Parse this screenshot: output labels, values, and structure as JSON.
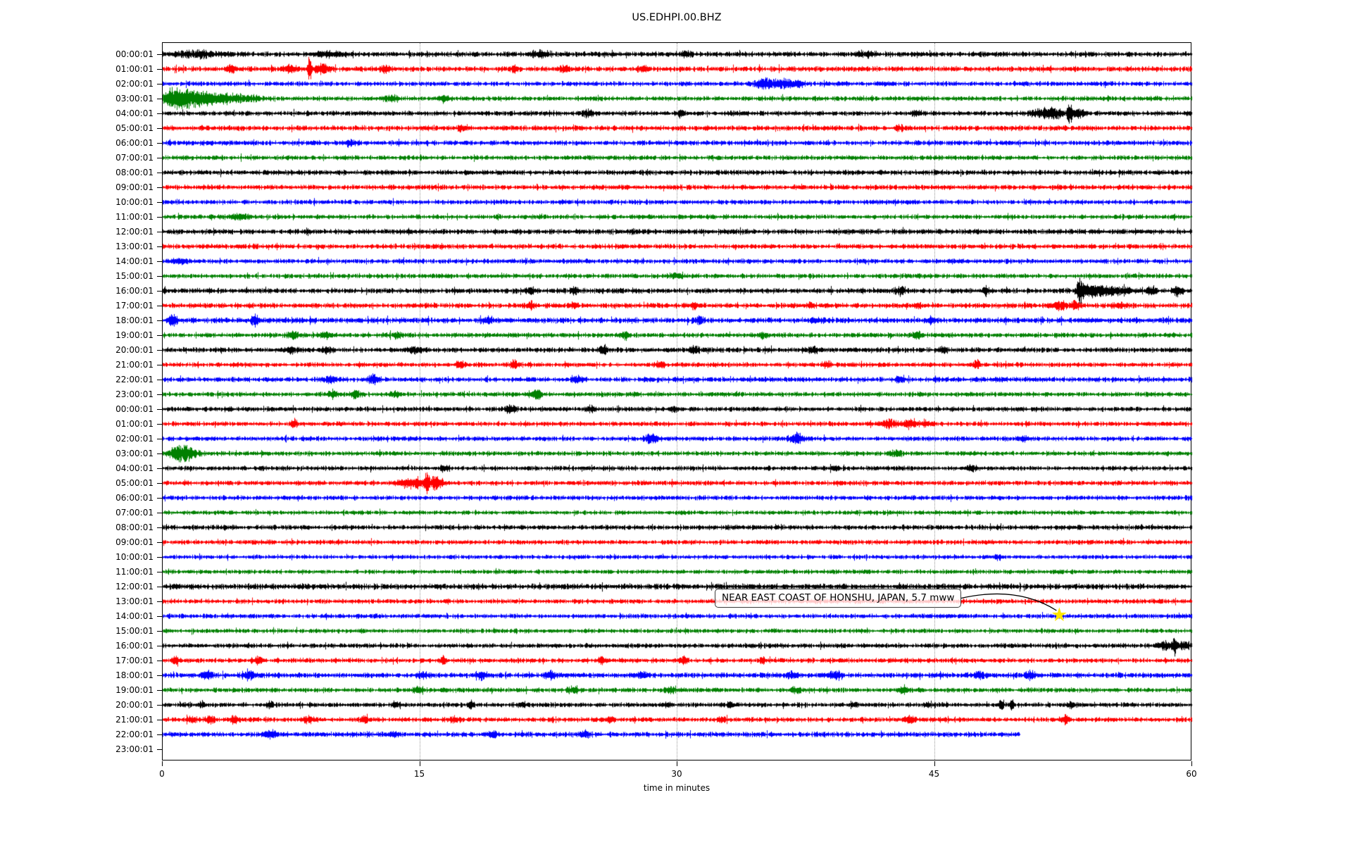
{
  "window": {
    "background": "#ffffff"
  },
  "chart_data": {
    "type": "line",
    "subtype": "helicorder-dayplot",
    "title": "US.EDHPI.00.BHZ",
    "xlabel": "time in minutes",
    "x_range": [
      0,
      60
    ],
    "x_ticks": [
      0,
      15,
      30,
      45,
      60
    ],
    "grid_minutes": [
      15,
      30,
      45
    ],
    "grid_style": "dotted",
    "color_cycle": [
      "#000000",
      "#ff0000",
      "#0000ff",
      "#008000"
    ],
    "event_marker": {
      "text": "NEAR EAST COAST OF HONSHU, JAPAN, 5.7 mww",
      "row_index": 38,
      "row_label": "14:00:01",
      "minute": 52.3,
      "marker": "star",
      "marker_color": "#ffe600"
    },
    "rows": [
      {
        "label": "00:00:01",
        "color": "#000000",
        "noise": 3.0,
        "end": 60,
        "events": [
          [
            2,
            4.5,
            1.2
          ],
          [
            9.8,
            4,
            0.8
          ],
          [
            22,
            4,
            0.6
          ],
          [
            30.5,
            4.5,
            0.3
          ],
          [
            41,
            3.5,
            0.5
          ]
        ]
      },
      {
        "label": "01:00:01",
        "color": "#ff0000",
        "noise": 3.0,
        "end": 60,
        "events": [
          [
            4,
            5,
            0.3
          ],
          [
            7.5,
            6,
            0.4
          ],
          [
            8.6,
            18,
            0.12
          ],
          [
            9.3,
            7,
            0.4
          ],
          [
            13,
            5,
            0.3
          ],
          [
            20.5,
            6,
            0.25
          ],
          [
            23.5,
            4,
            0.3
          ],
          [
            28,
            4,
            0.3
          ]
        ]
      },
      {
        "label": "02:00:01",
        "color": "#0000ff",
        "noise": 2.7,
        "end": 60,
        "events": [
          [
            35.2,
            8,
            0.6
          ],
          [
            36.3,
            7,
            0.5
          ],
          [
            37.1,
            5,
            0.3
          ]
        ]
      },
      {
        "label": "03:00:01",
        "color": "#008000",
        "noise": 2.7,
        "end": 60,
        "events": [
          [
            0.5,
            10,
            0.5
          ],
          [
            1.2,
            12,
            0.7
          ],
          [
            2.2,
            8,
            0.8
          ],
          [
            3.3,
            6,
            1
          ],
          [
            4.8,
            4,
            1
          ],
          [
            13.3,
            5,
            0.4
          ],
          [
            16.5,
            4,
            0.3
          ]
        ]
      },
      {
        "label": "04:00:01",
        "color": "#000000",
        "noise": 2.8,
        "end": 60,
        "events": [
          [
            24.8,
            5,
            0.3
          ],
          [
            30.2,
            6,
            0.2
          ],
          [
            44,
            4,
            0.3
          ],
          [
            51.3,
            6,
            0.7
          ],
          [
            52.1,
            6,
            0.4
          ],
          [
            52.9,
            16,
            0.13
          ],
          [
            53.4,
            7,
            0.4
          ]
        ]
      },
      {
        "label": "05:00:01",
        "color": "#ff0000",
        "noise": 3.0,
        "end": 60,
        "events": [
          [
            17.5,
            4,
            0.3
          ],
          [
            43,
            4,
            0.3
          ]
        ]
      },
      {
        "label": "06:00:01",
        "color": "#0000ff",
        "noise": 2.8,
        "end": 60,
        "events": [
          [
            11,
            4,
            0.4
          ]
        ]
      },
      {
        "label": "07:00:01",
        "color": "#008000",
        "noise": 2.7,
        "end": 60,
        "events": []
      },
      {
        "label": "08:00:01",
        "color": "#000000",
        "noise": 3.0,
        "end": 60,
        "events": []
      },
      {
        "label": "09:00:01",
        "color": "#ff0000",
        "noise": 2.9,
        "end": 60,
        "events": []
      },
      {
        "label": "10:00:01",
        "color": "#0000ff",
        "noise": 2.7,
        "end": 60,
        "events": []
      },
      {
        "label": "11:00:01",
        "color": "#008000",
        "noise": 2.7,
        "end": 60,
        "events": [
          [
            4.5,
            4,
            0.5
          ]
        ]
      },
      {
        "label": "12:00:01",
        "color": "#000000",
        "noise": 3.0,
        "end": 60,
        "events": []
      },
      {
        "label": "13:00:01",
        "color": "#ff0000",
        "noise": 2.9,
        "end": 60,
        "events": []
      },
      {
        "label": "14:00:01",
        "color": "#0000ff",
        "noise": 2.7,
        "end": 60,
        "events": [
          [
            1,
            4,
            0.5
          ]
        ]
      },
      {
        "label": "15:00:01",
        "color": "#008000",
        "noise": 2.7,
        "end": 60,
        "events": [
          [
            30,
            4,
            0.4
          ]
        ]
      },
      {
        "label": "16:00:01",
        "color": "#000000",
        "noise": 3.0,
        "end": 60,
        "events": [
          [
            21.5,
            6,
            0.2
          ],
          [
            24,
            5,
            0.2
          ],
          [
            43,
            5,
            0.3
          ],
          [
            48,
            5,
            0.2
          ],
          [
            53.5,
            17,
            0.2
          ],
          [
            54.3,
            8,
            0.7
          ],
          [
            55.6,
            5,
            0.9
          ],
          [
            57.7,
            7,
            0.25
          ],
          [
            59.2,
            6,
            0.3
          ]
        ]
      },
      {
        "label": "17:00:01",
        "color": "#ff0000",
        "noise": 3.0,
        "end": 60,
        "events": [
          [
            21.5,
            5,
            0.2
          ],
          [
            24,
            4,
            0.2
          ],
          [
            31,
            4,
            0.2
          ],
          [
            37.8,
            4,
            0.2
          ],
          [
            44,
            4,
            0.2
          ],
          [
            52.3,
            6,
            0.4
          ],
          [
            53.2,
            6,
            0.3
          ],
          [
            55.8,
            4,
            0.3
          ]
        ]
      },
      {
        "label": "18:00:01",
        "color": "#0000ff",
        "noise": 3.2,
        "end": 60,
        "events": [
          [
            0.6,
            7,
            0.3
          ],
          [
            5.4,
            9,
            0.2
          ],
          [
            19,
            4,
            0.3
          ],
          [
            31.3,
            6,
            0.3
          ],
          [
            38.2,
            4,
            0.3
          ],
          [
            44.8,
            4,
            0.3
          ]
        ]
      },
      {
        "label": "19:00:01",
        "color": "#008000",
        "noise": 2.8,
        "end": 60,
        "events": [
          [
            7.6,
            5,
            0.3
          ],
          [
            9.5,
            5,
            0.3
          ],
          [
            13.7,
            4,
            0.3
          ],
          [
            27,
            4,
            0.3
          ],
          [
            35,
            4,
            0.3
          ],
          [
            44,
            4,
            0.3
          ]
        ]
      },
      {
        "label": "20:00:01",
        "color": "#000000",
        "noise": 2.9,
        "end": 60,
        "events": [
          [
            7.5,
            4,
            0.3
          ],
          [
            9.5,
            4,
            0.3
          ],
          [
            14.8,
            5,
            0.3
          ],
          [
            25.7,
            6,
            0.25
          ],
          [
            31,
            5,
            0.3
          ],
          [
            38,
            4,
            0.3
          ],
          [
            45.5,
            4,
            0.3
          ]
        ]
      },
      {
        "label": "21:00:01",
        "color": "#ff0000",
        "noise": 2.7,
        "end": 60,
        "events": [
          [
            17.4,
            5,
            0.25
          ],
          [
            20.5,
            6,
            0.2
          ],
          [
            29,
            5,
            0.25
          ],
          [
            38.7,
            4,
            0.25
          ],
          [
            47.5,
            6,
            0.2
          ]
        ]
      },
      {
        "label": "22:00:01",
        "color": "#0000ff",
        "noise": 2.9,
        "end": 60,
        "events": [
          [
            9.8,
            5,
            0.3
          ],
          [
            12.3,
            6,
            0.3
          ],
          [
            24.2,
            5,
            0.3
          ],
          [
            43,
            4,
            0.3
          ]
        ]
      },
      {
        "label": "23:00:01",
        "color": "#008000",
        "noise": 2.7,
        "end": 60,
        "events": [
          [
            9.9,
            5,
            0.3
          ],
          [
            11.3,
            6,
            0.3
          ],
          [
            13.5,
            4,
            0.3
          ],
          [
            21.8,
            7,
            0.3
          ]
        ]
      },
      {
        "label": "00:00:01",
        "color": "#000000",
        "noise": 2.7,
        "end": 60,
        "events": [
          [
            20.3,
            6,
            0.3
          ],
          [
            25,
            4,
            0.3
          ],
          [
            29.8,
            4,
            0.3
          ]
        ]
      },
      {
        "label": "01:00:01",
        "color": "#ff0000",
        "noise": 2.7,
        "end": 60,
        "events": [
          [
            7.7,
            5,
            0.2
          ],
          [
            42.3,
            7,
            0.4
          ],
          [
            43.5,
            6,
            0.4
          ],
          [
            44.6,
            4,
            0.3
          ]
        ]
      },
      {
        "label": "02:00:01",
        "color": "#0000ff",
        "noise": 2.7,
        "end": 60,
        "events": [
          [
            28.5,
            7,
            0.4
          ],
          [
            37,
            7,
            0.4
          ],
          [
            50.2,
            4,
            0.3
          ]
        ]
      },
      {
        "label": "03:00:01",
        "color": "#008000",
        "noise": 2.7,
        "end": 60,
        "events": [
          [
            0.9,
            10,
            0.5
          ],
          [
            1.6,
            7,
            0.5
          ],
          [
            42.8,
            4,
            0.3
          ]
        ]
      },
      {
        "label": "04:00:01",
        "color": "#000000",
        "noise": 2.7,
        "end": 60,
        "events": [
          [
            16.4,
            4,
            0.2
          ],
          [
            39.2,
            4,
            0.2
          ],
          [
            47.2,
            5,
            0.2
          ]
        ]
      },
      {
        "label": "05:00:01",
        "color": "#ff0000",
        "noise": 2.7,
        "end": 60,
        "events": [
          [
            14.2,
            6,
            0.5
          ],
          [
            14.9,
            7,
            0.3
          ],
          [
            15.4,
            22,
            0.12
          ],
          [
            15.8,
            8,
            0.3
          ],
          [
            16.2,
            5,
            0.3
          ]
        ]
      },
      {
        "label": "06:00:01",
        "color": "#0000ff",
        "noise": 2.7,
        "end": 60,
        "events": []
      },
      {
        "label": "07:00:01",
        "color": "#008000",
        "noise": 2.5,
        "end": 60,
        "events": []
      },
      {
        "label": "08:00:01",
        "color": "#000000",
        "noise": 2.8,
        "end": 60,
        "events": []
      },
      {
        "label": "09:00:01",
        "color": "#ff0000",
        "noise": 2.7,
        "end": 60,
        "events": []
      },
      {
        "label": "10:00:01",
        "color": "#0000ff",
        "noise": 2.5,
        "end": 60,
        "events": [
          [
            48.7,
            4,
            0.2
          ]
        ]
      },
      {
        "label": "11:00:01",
        "color": "#008000",
        "noise": 2.5,
        "end": 60,
        "events": []
      },
      {
        "label": "12:00:01",
        "color": "#000000",
        "noise": 3.3,
        "end": 60,
        "events": []
      },
      {
        "label": "13:00:01",
        "color": "#ff0000",
        "noise": 2.7,
        "end": 60,
        "events": []
      },
      {
        "label": "14:00:01",
        "color": "#0000ff",
        "noise": 2.7,
        "end": 60,
        "events": []
      },
      {
        "label": "15:00:01",
        "color": "#008000",
        "noise": 2.5,
        "end": 60,
        "events": []
      },
      {
        "label": "16:00:01",
        "color": "#000000",
        "noise": 2.7,
        "end": 60,
        "events": [
          [
            58.4,
            7,
            0.4
          ],
          [
            59,
            14,
            0.13
          ],
          [
            59.5,
            6,
            0.3
          ]
        ]
      },
      {
        "label": "17:00:01",
        "color": "#ff0000",
        "noise": 2.7,
        "end": 60,
        "events": [
          [
            0.8,
            7,
            0.2
          ],
          [
            5.6,
            6,
            0.2
          ],
          [
            16.4,
            6,
            0.2
          ],
          [
            25.6,
            4,
            0.2
          ],
          [
            30.4,
            5,
            0.2
          ],
          [
            35,
            4,
            0.2
          ]
        ]
      },
      {
        "label": "18:00:01",
        "color": "#0000ff",
        "noise": 3.0,
        "end": 60,
        "events": [
          [
            2.6,
            5,
            0.3
          ],
          [
            5.1,
            6,
            0.3
          ],
          [
            15.2,
            5,
            0.3
          ],
          [
            18.6,
            6,
            0.3
          ],
          [
            22.6,
            5,
            0.3
          ],
          [
            28,
            4,
            0.3
          ],
          [
            36.6,
            4,
            0.3
          ],
          [
            39.2,
            5,
            0.3
          ],
          [
            47.6,
            5,
            0.3
          ],
          [
            50.6,
            5,
            0.3
          ]
        ]
      },
      {
        "label": "19:00:01",
        "color": "#008000",
        "noise": 2.7,
        "end": 60,
        "events": [
          [
            14.9,
            4,
            0.3
          ],
          [
            24,
            5,
            0.3
          ],
          [
            29.6,
            4,
            0.3
          ],
          [
            36.9,
            4,
            0.3
          ],
          [
            43.2,
            5,
            0.3
          ]
        ]
      },
      {
        "label": "20:00:01",
        "color": "#000000",
        "noise": 2.7,
        "end": 60,
        "events": [
          [
            2.3,
            5,
            0.15
          ],
          [
            6.3,
            4,
            0.2
          ],
          [
            13.6,
            4,
            0.2
          ],
          [
            18,
            6,
            0.15
          ],
          [
            21,
            4,
            0.2
          ],
          [
            29.5,
            4,
            0.2
          ],
          [
            33.1,
            4,
            0.2
          ],
          [
            40.3,
            5,
            0.2
          ],
          [
            44.6,
            4,
            0.2
          ],
          [
            48.9,
            9,
            0.13
          ],
          [
            49.5,
            9,
            0.13
          ],
          [
            53,
            4,
            0.2
          ]
        ]
      },
      {
        "label": "21:00:01",
        "color": "#ff0000",
        "noise": 2.7,
        "end": 60,
        "events": [
          [
            1.7,
            5,
            0.3
          ],
          [
            2.8,
            5,
            0.3
          ],
          [
            4.2,
            5,
            0.3
          ],
          [
            8.5,
            5,
            0.3
          ],
          [
            11.8,
            4,
            0.3
          ],
          [
            17,
            4,
            0.3
          ],
          [
            26.1,
            4,
            0.25
          ],
          [
            32.6,
            4,
            0.25
          ],
          [
            43.6,
            6,
            0.3
          ],
          [
            52.6,
            5,
            0.25
          ]
        ]
      },
      {
        "label": "22:00:01",
        "color": "#0000ff",
        "noise": 3.0,
        "end": 50,
        "events": [
          [
            6.3,
            6,
            0.3
          ],
          [
            13.5,
            4,
            0.3
          ],
          [
            19.2,
            4,
            0.3
          ],
          [
            24.6,
            5,
            0.3
          ]
        ]
      },
      {
        "label": "23:00:01",
        "color": "#008000",
        "noise": 0,
        "end": 0,
        "events": []
      }
    ]
  }
}
